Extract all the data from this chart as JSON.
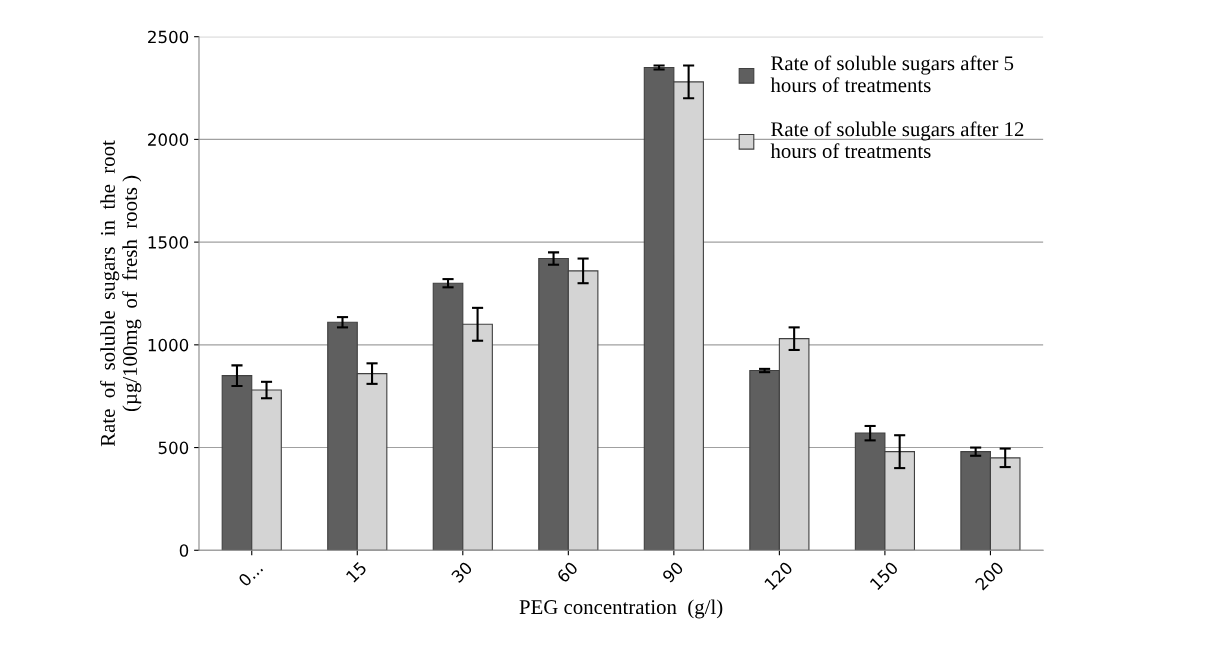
{
  "chart_data": {
    "type": "bar",
    "xlabel": "PEG concentration  (g/l)",
    "ylabel": "Rate  of  soluble  sugars  in  the  root\n(µg/100mg  of  fresh  roots )",
    "categories": [
      "0...",
      "15",
      "30",
      "60",
      "90",
      "120",
      "150",
      "200"
    ],
    "series": [
      {
        "name": "Rate of soluble sugars after 5\nhours of treatments",
        "color": "#5f5f5f",
        "values": [
          850,
          1110,
          1300,
          1420,
          2350,
          875,
          570,
          480
        ],
        "errors": [
          50,
          25,
          20,
          30,
          10,
          8,
          35,
          20
        ]
      },
      {
        "name": "Rate of soluble sugars after 12\nhours of treatments",
        "color": "#d4d4d4",
        "values": [
          780,
          860,
          1100,
          1360,
          2280,
          1030,
          480,
          450
        ],
        "errors": [
          40,
          50,
          80,
          60,
          80,
          55,
          80,
          45
        ]
      }
    ],
    "ylim": [
      0,
      2500
    ],
    "yticks": [
      0,
      500,
      1000,
      1500,
      2000,
      2500
    ],
    "grid": "y",
    "legend": "top right"
  }
}
